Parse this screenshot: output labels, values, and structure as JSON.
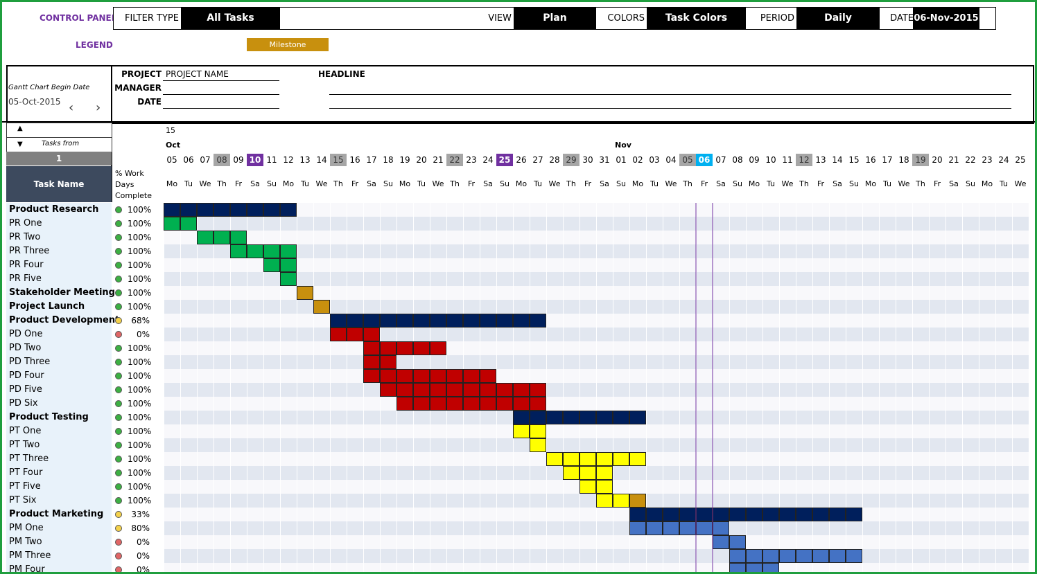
{
  "control_panel": {
    "title": "CONTROL PANEL",
    "filter_type_label": "FILTER TYPE",
    "filter_type_value": "All Tasks",
    "view_label": "VIEW",
    "view_value": "Plan",
    "colors_label": "COLORS",
    "colors_value": "Task Colors",
    "period_label": "PERIOD",
    "period_value": "Daily",
    "date_label": "DATE",
    "date_value": "06-Nov-2015"
  },
  "legend": {
    "label": "LEGEND",
    "milestone_label": "Milestone",
    "milestone_color": "#c8900e"
  },
  "header": {
    "begin_date_label": "Gantt Chart Begin Date",
    "begin_date_value": "05-Oct-2015",
    "project_label": "PROJECT",
    "project_value": "PROJECT NAME",
    "manager_label": "MANAGER",
    "date_label": "DATE",
    "headline_label": "HEADLINE",
    "prev_icon": "chevron-left-icon",
    "next_icon": "chevron-right-icon"
  },
  "timeline": {
    "year": "15",
    "tasks_from_label": "Tasks from",
    "tasks_from_value": "1",
    "task_name_header": "Task Name",
    "pct_header_line1": "% Work",
    "pct_header_line2": "Days",
    "pct_header_line3": "Complete",
    "months": [
      {
        "label": "Oct",
        "start_index": 0
      },
      {
        "label": "Nov",
        "start_index": 27
      }
    ],
    "days": [
      "05",
      "06",
      "07",
      "08",
      "09",
      "10",
      "11",
      "12",
      "13",
      "14",
      "15",
      "16",
      "17",
      "18",
      "19",
      "20",
      "21",
      "22",
      "23",
      "24",
      "25",
      "26",
      "27",
      "28",
      "29",
      "30",
      "31",
      "01",
      "02",
      "03",
      "04",
      "05",
      "06",
      "07",
      "08",
      "09",
      "10",
      "11",
      "12",
      "13",
      "14",
      "15",
      "16",
      "17",
      "18",
      "19",
      "20",
      "21",
      "22",
      "23",
      "24",
      "25"
    ],
    "day_names": [
      "Mo",
      "Tu",
      "We",
      "Th",
      "Fr",
      "Sa",
      "Su",
      "Mo",
      "Tu",
      "We",
      "Th",
      "Fr",
      "Sa",
      "Su",
      "Mo",
      "Tu",
      "We",
      "Th",
      "Fr",
      "Sa",
      "Su",
      "Mo",
      "Tu",
      "We",
      "Th",
      "Fr",
      "Sa",
      "Su",
      "Mo",
      "Tu",
      "We",
      "Th",
      "Fr",
      "Sa",
      "Su",
      "Mo",
      "Tu",
      "We",
      "Th",
      "Fr",
      "Sa",
      "Su",
      "Mo",
      "Tu",
      "We",
      "Th",
      "Fr",
      "Sa",
      "Su",
      "Mo",
      "Tu",
      "We"
    ],
    "gray_day_indices": [
      3,
      10,
      17,
      24,
      31,
      38,
      45
    ],
    "purple_day_indices": [
      5,
      20
    ],
    "today_index": 32
  },
  "colors": {
    "summary": "#001f5c",
    "research": "#00b050",
    "development": "#c00000",
    "testing": "#ffff00",
    "marketing": "#4472c4",
    "milestone": "#c8900e",
    "today": "#00b0f0",
    "purple": "#7030a0",
    "gray_day": "#a6a6a6",
    "status_green": "#3cb043",
    "status_yellow": "#f5d24b",
    "status_red": "#e06666"
  },
  "tasks": [
    {
      "name": "Product Research",
      "bold": true,
      "pct": "100%",
      "status": "green",
      "start": 0,
      "len": 8,
      "color": "summary"
    },
    {
      "name": "PR One",
      "bold": false,
      "pct": "100%",
      "status": "green",
      "start": 0,
      "len": 2,
      "color": "research"
    },
    {
      "name": "PR Two",
      "bold": false,
      "pct": "100%",
      "status": "green",
      "start": 2,
      "len": 3,
      "color": "research"
    },
    {
      "name": "PR Three",
      "bold": false,
      "pct": "100%",
      "status": "green",
      "start": 4,
      "len": 4,
      "color": "research"
    },
    {
      "name": "PR Four",
      "bold": false,
      "pct": "100%",
      "status": "green",
      "start": 6,
      "len": 2,
      "color": "research"
    },
    {
      "name": "PR Five",
      "bold": false,
      "pct": "100%",
      "status": "green",
      "start": 7,
      "len": 1,
      "color": "research"
    },
    {
      "name": "Stakeholder Meeting",
      "bold": true,
      "pct": "100%",
      "status": "green",
      "start": 8,
      "len": 1,
      "color": "milestone"
    },
    {
      "name": "Project Launch",
      "bold": true,
      "pct": "100%",
      "status": "green",
      "start": 9,
      "len": 1,
      "color": "milestone"
    },
    {
      "name": "Product Development",
      "bold": true,
      "pct": "68%",
      "status": "yellow",
      "start": 10,
      "len": 13,
      "color": "summary"
    },
    {
      "name": "PD One",
      "bold": false,
      "pct": "0%",
      "status": "red",
      "start": 10,
      "len": 3,
      "color": "development"
    },
    {
      "name": "PD Two",
      "bold": false,
      "pct": "100%",
      "status": "green",
      "start": 12,
      "len": 5,
      "color": "development"
    },
    {
      "name": "PD Three",
      "bold": false,
      "pct": "100%",
      "status": "green",
      "start": 12,
      "len": 2,
      "color": "development"
    },
    {
      "name": "PD Four",
      "bold": false,
      "pct": "100%",
      "status": "green",
      "start": 12,
      "len": 8,
      "color": "development"
    },
    {
      "name": "PD Five",
      "bold": false,
      "pct": "100%",
      "status": "green",
      "start": 13,
      "len": 10,
      "color": "development"
    },
    {
      "name": "PD Six",
      "bold": false,
      "pct": "100%",
      "status": "green",
      "start": 14,
      "len": 9,
      "color": "development"
    },
    {
      "name": "Product Testing",
      "bold": true,
      "pct": "100%",
      "status": "green",
      "start": 21,
      "len": 8,
      "color": "summary"
    },
    {
      "name": "PT One",
      "bold": false,
      "pct": "100%",
      "status": "green",
      "start": 21,
      "len": 2,
      "color": "testing"
    },
    {
      "name": "PT Two",
      "bold": false,
      "pct": "100%",
      "status": "green",
      "start": 22,
      "len": 1,
      "color": "testing"
    },
    {
      "name": "PT Three",
      "bold": false,
      "pct": "100%",
      "status": "green",
      "start": 23,
      "len": 6,
      "color": "testing"
    },
    {
      "name": "PT Four",
      "bold": false,
      "pct": "100%",
      "status": "green",
      "start": 24,
      "len": 3,
      "color": "testing"
    },
    {
      "name": "PT Five",
      "bold": false,
      "pct": "100%",
      "status": "green",
      "start": 25,
      "len": 2,
      "color": "testing"
    },
    {
      "name": "PT Six",
      "bold": false,
      "pct": "100%",
      "status": "green",
      "start": 26,
      "len": 2,
      "color": "testing",
      "milestone_at": 28
    },
    {
      "name": "Product Marketing",
      "bold": true,
      "pct": "33%",
      "status": "yellow",
      "start": 28,
      "len": 14,
      "color": "summary"
    },
    {
      "name": "PM One",
      "bold": false,
      "pct": "80%",
      "status": "yellow",
      "start": 28,
      "len": 6,
      "color": "marketing"
    },
    {
      "name": "PM Two",
      "bold": false,
      "pct": "0%",
      "status": "red",
      "start": 33,
      "len": 2,
      "color": "marketing"
    },
    {
      "name": "PM Three",
      "bold": false,
      "pct": "0%",
      "status": "red",
      "start": 34,
      "len": 8,
      "color": "marketing"
    },
    {
      "name": "PM Four",
      "bold": false,
      "pct": "0%",
      "status": "red",
      "start": 34,
      "len": 3,
      "color": "marketing"
    }
  ]
}
